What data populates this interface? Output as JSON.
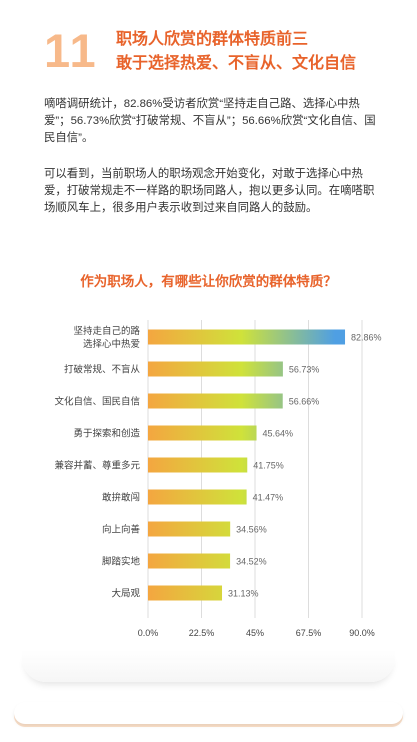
{
  "header": {
    "number": "11",
    "title_line1": "职场人欣赏的群体特质前三",
    "title_line2": "敢于选择热爱、不盲从、文化自信"
  },
  "paragraphs": {
    "p1": "嘀嗒调研统计，82.86%受访者欣赏“坚持走自己路、选择心中热爱”；56.73%欣赏“打破常规、不盲从”；56.66%欣赏“文化自信、国民自信”。",
    "p2": "可以看到，当前职场人的职场观念开始变化，对敢于选择心中热爱，打破常规走不一样路的职场同路人，抱以更多认同。在嘀嗒职场顺风车上，很多用户表示收到过来自同路人的鼓励。"
  },
  "chart_data": {
    "type": "bar",
    "orientation": "horizontal",
    "title": "作为职场人，有哪些让你欣赏的群体特质？",
    "categories": [
      [
        "坚持走自己的路",
        "选择心中热爱"
      ],
      [
        "打破常规、不盲从"
      ],
      [
        "文化自信、国民自信"
      ],
      [
        "勇于探索和创造"
      ],
      [
        "兼容并蓄、尊重多元"
      ],
      [
        "敢拚敢闯"
      ],
      [
        "向上向善"
      ],
      [
        "脚踏实地"
      ],
      [
        "大局观"
      ]
    ],
    "values": [
      82.86,
      56.73,
      56.66,
      45.64,
      41.75,
      41.47,
      34.56,
      34.52,
      31.13
    ],
    "value_labels": [
      "82.86%",
      "56.73%",
      "56.66%",
      "45.64%",
      "41.75%",
      "41.47%",
      "34.56%",
      "34.52%",
      "31.13%"
    ],
    "xlim": [
      0,
      90
    ],
    "xticks": [
      0,
      22.5,
      45,
      67.5,
      90
    ],
    "xtick_labels": [
      "0.0%",
      "22.5%",
      "45%",
      "67.5%",
      "90.0%"
    ],
    "grid": true,
    "colors": {
      "bar_start": "#f4a640",
      "bar_mid": "#cfe23a",
      "bar_end": "#4f9fe3",
      "grid": "#dddddd",
      "label": "#444444",
      "value_label": "#666666"
    }
  }
}
